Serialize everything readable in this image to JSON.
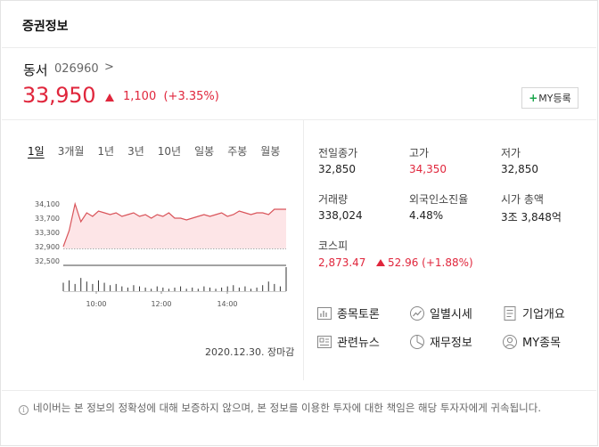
{
  "card": {
    "title": "증권정보"
  },
  "stock": {
    "name": "동서",
    "code": "026960",
    "code_chevron": ">",
    "price": "33,950",
    "change": "1,100",
    "change_pct": "(+3.35%)",
    "my_button_label": "MY등록"
  },
  "tabs": [
    {
      "label": "1일",
      "active": true
    },
    {
      "label": "3개월"
    },
    {
      "label": "1년"
    },
    {
      "label": "3년"
    },
    {
      "label": "10년"
    },
    {
      "label": "일봉"
    },
    {
      "label": "주봉"
    },
    {
      "label": "월봉"
    }
  ],
  "chart_data": {
    "type": "area",
    "title": "",
    "ylim": [
      32500,
      34500
    ],
    "y_ticks": [
      "34,100",
      "33,700",
      "33,300",
      "32,900",
      "32,500"
    ],
    "x_ticks": [
      "10:00",
      "12:00",
      "14:00"
    ],
    "reference_line": 32850,
    "price_series": [
      32900,
      33350,
      34100,
      33600,
      33850,
      33750,
      33900,
      33850,
      33800,
      33850,
      33750,
      33800,
      33850,
      33750,
      33800,
      33700,
      33800,
      33750,
      33850,
      33700,
      33700,
      33650,
      33700,
      33750,
      33800,
      33750,
      33800,
      33850,
      33750,
      33800,
      33900,
      33850,
      33800,
      33850,
      33850,
      33800,
      33950,
      33950,
      33950
    ],
    "volume_series": [
      0.35,
      0.45,
      0.3,
      0.55,
      0.4,
      0.3,
      0.45,
      0.35,
      0.25,
      0.3,
      0.2,
      0.15,
      0.25,
      0.2,
      0.15,
      0.1,
      0.2,
      0.15,
      0.1,
      0.15,
      0.2,
      0.1,
      0.15,
      0.1,
      0.2,
      0.15,
      0.1,
      0.15,
      0.2,
      0.25,
      0.15,
      0.2,
      0.1,
      0.15,
      0.25,
      0.4,
      0.3,
      0.2,
      1.0
    ],
    "colors": {
      "line": "#d9545a",
      "fill": "#fde5e7",
      "volume": "#333333"
    }
  },
  "date_note": "2020.12.30. 장마감",
  "info": {
    "prev_close_label": "전일종가",
    "prev_close": "32,850",
    "high_label": "고가",
    "high": "34,350",
    "low_label": "저가",
    "low": "32,850",
    "volume_label": "거래량",
    "volume": "338,024",
    "foreign_label": "외국인소진율",
    "foreign": "4.48%",
    "mcap_label": "시가 총액",
    "mcap": "3조 3,848억",
    "kospi_label": "코스피",
    "kospi": "2,873.47",
    "kospi_change": "52.96 (+1.88%)"
  },
  "links": {
    "discussion": "종목토론",
    "daily": "일별시세",
    "company": "기업개요",
    "news": "관련뉴스",
    "finance": "재무정보",
    "my": "MY종목"
  },
  "notice": "네이버는 본 정보의 정확성에 대해 보증하지 않으며, 본 정보를 이용한 투자에 대한 책임은 해당 투자자에게 귀속됩니다.",
  "theme": {
    "up_color": "#e0263c",
    "my_plus_color": "#19a64b"
  }
}
